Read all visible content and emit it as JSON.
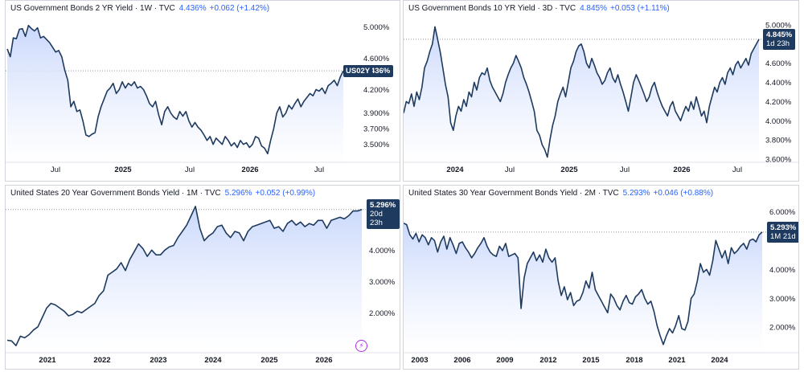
{
  "colors": {
    "line": "#1e3a5f",
    "fill_top": "#c7d6fb",
    "fill_bottom": "#ffffff",
    "accent": "#2962ff",
    "badge_bg": "#1e3a5f"
  },
  "panels": [
    {
      "symbol": "US Government Bonds 2 YR Yield · 1W · TVC",
      "value": "4.436%",
      "change": "+0.062 (+1.42%)",
      "tag": "US02Y",
      "badge_price": "4.436%",
      "badge_sub": ""
    },
    {
      "symbol": "US Government Bonds 10 YR Yield · 3D · TVC",
      "value": "4.845%",
      "change": "+0.053 (+1.11%)",
      "tag": "",
      "badge_price": "4.845%",
      "badge_sub": "1d 23h"
    },
    {
      "symbol": "United States 20 Year Government Bonds Yield · 1M · TVC",
      "value": "5.296%",
      "change": "+0.052 (+0.99%)",
      "tag": "",
      "badge_price": "5.296%",
      "badge_sub": "20d 23h"
    },
    {
      "symbol": "United States 30 Year Government Bonds Yield · 2M · TVC",
      "value": "5.293%",
      "change": "+0.046 (+0.88%)",
      "tag": "",
      "badge_price": "5.293%",
      "badge_sub": "1M 21d"
    }
  ],
  "chart_data": [
    {
      "type": "area",
      "title": "US Government Bonds 2 YR Yield · 1W · TVC",
      "y_ticks": [
        "5.000%",
        "4.600%",
        "4.200%",
        "3.900%",
        "3.700%",
        "3.500%"
      ],
      "y_tick_values": [
        5.0,
        4.6,
        4.2,
        3.9,
        3.7,
        3.5
      ],
      "x_ticks": [
        "Jul",
        "2025",
        "Jul",
        "2026",
        "Jul"
      ],
      "x_tick_bold": [
        false,
        true,
        false,
        true,
        false
      ],
      "x_tick_pos": [
        0.0,
        0.0,
        0.0,
        0.0,
        0.0
      ],
      "ylim": [
        3.25,
        5.15
      ],
      "values": [
        4.72,
        4.62,
        4.86,
        4.85,
        4.97,
        4.98,
        4.88,
        5.02,
        4.98,
        4.95,
        4.99,
        4.86,
        4.88,
        4.84,
        4.8,
        4.74,
        4.68,
        4.7,
        4.62,
        4.45,
        4.32,
        3.98,
        4.05,
        3.92,
        3.94,
        3.8,
        3.62,
        3.6,
        3.63,
        3.65,
        3.85,
        3.98,
        4.08,
        4.18,
        4.22,
        4.28,
        4.15,
        4.2,
        4.3,
        4.22,
        4.28,
        4.25,
        4.3,
        4.22,
        4.24,
        4.2,
        4.12,
        4.02,
        3.98,
        4.05,
        3.88,
        3.75,
        3.92,
        3.98,
        3.9,
        3.85,
        3.82,
        3.92,
        3.86,
        3.92,
        3.8,
        3.72,
        3.78,
        3.72,
        3.68,
        3.62,
        3.55,
        3.6,
        3.5,
        3.58,
        3.54,
        3.5,
        3.6,
        3.55,
        3.48,
        3.52,
        3.46,
        3.55,
        3.5,
        3.52,
        3.46,
        3.5,
        3.6,
        3.58,
        3.48,
        3.45,
        3.38,
        3.55,
        3.7,
        3.9,
        3.98,
        3.85,
        3.9,
        4.0,
        3.95,
        4.02,
        4.08,
        3.98,
        4.05,
        4.1,
        4.15,
        4.12,
        4.2,
        4.18,
        4.22,
        4.15,
        4.25,
        4.28,
        4.32,
        4.25,
        4.36,
        4.44
      ]
    },
    {
      "type": "area",
      "title": "US Government Bonds 10 YR Yield · 3D · TVC",
      "y_ticks": [
        "5.000%",
        "4.800%",
        "4.600%",
        "4.400%",
        "4.200%",
        "4.000%",
        "3.800%",
        "3.600%"
      ],
      "y_tick_values": [
        5.0,
        4.8,
        4.6,
        4.4,
        4.2,
        4.0,
        3.8,
        3.6
      ],
      "x_ticks": [
        "2024",
        "Jul",
        "2025",
        "Jul",
        "2026",
        "Jul"
      ],
      "x_tick_bold": [
        true,
        false,
        true,
        false,
        true,
        false
      ],
      "ylim": [
        3.55,
        5.1
      ],
      "values": [
        4.08,
        4.2,
        4.18,
        4.28,
        4.15,
        4.3,
        4.22,
        4.35,
        4.55,
        4.62,
        4.72,
        4.8,
        4.98,
        4.85,
        4.72,
        4.55,
        4.38,
        4.25,
        3.98,
        3.9,
        4.05,
        4.15,
        4.1,
        4.22,
        4.15,
        4.3,
        4.25,
        4.4,
        4.32,
        4.45,
        4.5,
        4.48,
        4.55,
        4.42,
        4.35,
        4.3,
        4.25,
        4.2,
        4.28,
        4.4,
        4.48,
        4.55,
        4.6,
        4.68,
        4.62,
        4.55,
        4.45,
        4.38,
        4.3,
        4.2,
        4.1,
        3.9,
        3.85,
        3.75,
        3.7,
        3.62,
        3.8,
        3.95,
        4.05,
        4.2,
        4.28,
        4.35,
        4.25,
        4.4,
        4.55,
        4.62,
        4.72,
        4.78,
        4.8,
        4.72,
        4.6,
        4.55,
        4.65,
        4.58,
        4.5,
        4.45,
        4.38,
        4.42,
        4.5,
        4.55,
        4.45,
        4.4,
        4.48,
        4.38,
        4.3,
        4.2,
        4.1,
        4.25,
        4.4,
        4.48,
        4.42,
        4.35,
        4.28,
        4.2,
        4.25,
        4.35,
        4.4,
        4.3,
        4.22,
        4.15,
        4.1,
        4.05,
        4.15,
        4.2,
        4.1,
        4.05,
        4.0,
        4.08,
        4.15,
        4.1,
        4.2,
        4.12,
        4.25,
        4.15,
        4.05,
        4.1,
        3.98,
        4.15,
        4.25,
        4.35,
        4.3,
        4.4,
        4.45,
        4.38,
        4.5,
        4.55,
        4.48,
        4.58,
        4.62,
        4.55,
        4.6,
        4.65,
        4.58,
        4.7,
        4.75,
        4.8,
        4.85
      ]
    },
    {
      "type": "area",
      "title": "United States 20 Year Government Bonds Yield · 1M · TVC",
      "y_ticks": [
        "4.000%",
        "3.000%",
        "2.000%"
      ],
      "y_tick_values": [
        4.0,
        3.0,
        2.0
      ],
      "x_ticks": [
        "2021",
        "2022",
        "2023",
        "2024",
        "2025",
        "2026"
      ],
      "x_tick_bold": [
        true,
        true,
        true,
        true,
        true,
        true
      ],
      "ylim": [
        0.8,
        5.6
      ],
      "values": [
        1.12,
        1.1,
        0.95,
        1.25,
        1.2,
        1.3,
        1.45,
        1.55,
        1.85,
        2.15,
        2.3,
        2.25,
        2.15,
        2.05,
        1.9,
        1.95,
        2.05,
        2.0,
        2.1,
        2.2,
        2.3,
        2.55,
        2.7,
        3.2,
        3.3,
        3.4,
        3.6,
        3.35,
        3.7,
        3.95,
        4.2,
        4.05,
        3.8,
        4.0,
        3.85,
        3.85,
        4.0,
        4.1,
        4.15,
        4.4,
        4.6,
        4.8,
        5.1,
        5.4,
        4.7,
        4.3,
        4.45,
        4.55,
        4.75,
        4.8,
        4.55,
        4.4,
        4.6,
        4.55,
        4.3,
        4.6,
        4.75,
        4.8,
        4.85,
        4.9,
        4.95,
        4.7,
        4.75,
        4.6,
        4.85,
        4.95,
        4.8,
        4.9,
        4.75,
        4.85,
        4.8,
        4.95,
        4.95,
        4.7,
        4.95,
        5.0,
        5.05,
        5.0,
        5.1,
        5.25,
        5.25,
        5.3
      ]
    },
    {
      "type": "area",
      "title": "United States 30 Year Government Bonds Yield · 2M · TVC",
      "y_ticks": [
        "6.000%",
        "4.000%",
        "3.000%",
        "2.000%"
      ],
      "y_tick_values": [
        6.0,
        4.0,
        3.0,
        2.0
      ],
      "x_ticks": [
        "2003",
        "2006",
        "2009",
        "2012",
        "2015",
        "2018",
        "2021",
        "2024"
      ],
      "x_tick_bold": [
        true,
        true,
        true,
        true,
        true,
        true,
        true,
        true
      ],
      "ylim": [
        1.2,
        6.4
      ],
      "values": [
        5.6,
        5.55,
        5.2,
        5.05,
        5.25,
        4.95,
        5.2,
        5.1,
        4.85,
        5.1,
        5.0,
        4.6,
        4.95,
        5.15,
        4.7,
        5.1,
        4.85,
        4.55,
        4.9,
        4.95,
        4.75,
        4.6,
        4.4,
        4.55,
        4.75,
        4.9,
        5.1,
        4.8,
        4.6,
        4.5,
        4.45,
        4.8,
        4.65,
        4.9,
        4.45,
        4.5,
        4.55,
        4.4,
        2.65,
        3.7,
        4.2,
        4.4,
        4.6,
        4.3,
        4.5,
        4.25,
        4.7,
        4.4,
        4.25,
        4.4,
        3.6,
        3.1,
        3.4,
        2.95,
        3.2,
        2.75,
        2.9,
        2.95,
        3.2,
        3.6,
        3.35,
        3.9,
        3.3,
        3.1,
        2.9,
        2.7,
        2.5,
        3.15,
        3.0,
        2.75,
        2.6,
        2.9,
        3.1,
        2.85,
        2.8,
        3.05,
        3.15,
        3.3,
        3.0,
        2.8,
        2.9,
        2.55,
        2.05,
        1.7,
        1.4,
        1.7,
        1.95,
        1.8,
        2.05,
        2.4,
        1.95,
        1.9,
        2.2,
        3.0,
        3.15,
        3.6,
        4.2,
        3.9,
        4.0,
        3.8,
        4.3,
        5.0,
        4.7,
        4.4,
        4.65,
        4.2,
        4.75,
        4.55,
        4.65,
        4.8,
        4.9,
        4.7,
        5.0,
        5.05,
        4.95,
        5.2,
        5.29
      ]
    }
  ]
}
